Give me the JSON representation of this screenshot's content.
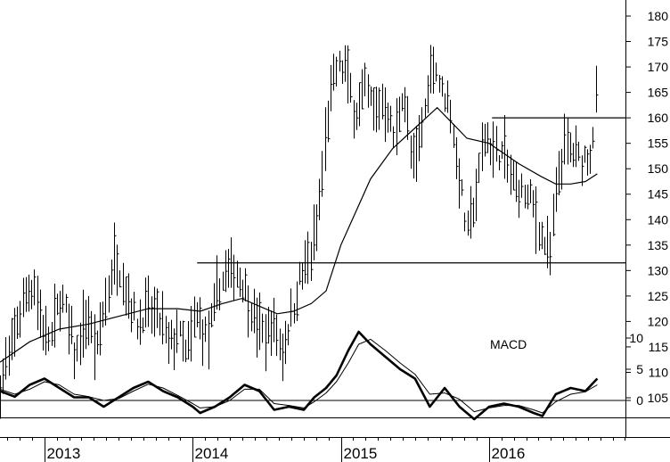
{
  "chart_data": [
    {
      "type": "bar",
      "subtype": "ohlc-price-with-moving-average",
      "title": "",
      "xlabel": "",
      "ylabel": "",
      "ylim": [
        100,
        182
      ],
      "y_ticks": [
        105,
        110,
        115,
        120,
        125,
        130,
        135,
        140,
        145,
        150,
        155,
        160,
        165,
        170,
        175,
        180
      ],
      "x_tick_labels": [
        "2013",
        "2014",
        "2015",
        "2016"
      ],
      "x_range_years": [
        2012.7,
        2016.92
      ],
      "grid": false,
      "price_path": [
        [
          2012.7,
          107
        ],
        [
          2012.8,
          118
        ],
        [
          2012.87,
          126
        ],
        [
          2012.93,
          127
        ],
        [
          2012.98,
          119
        ],
        [
          2013.05,
          117
        ],
        [
          2013.1,
          125
        ],
        [
          2013.15,
          121
        ],
        [
          2013.21,
          113
        ],
        [
          2013.29,
          121
        ],
        [
          2013.35,
          113
        ],
        [
          2013.4,
          123
        ],
        [
          2013.48,
          133
        ],
        [
          2013.54,
          127
        ],
        [
          2013.62,
          120
        ],
        [
          2013.7,
          122
        ],
        [
          2013.77,
          121
        ],
        [
          2013.84,
          115
        ],
        [
          2013.9,
          118
        ],
        [
          2013.96,
          113
        ],
        [
          2014.02,
          121
        ],
        [
          2014.1,
          116
        ],
        [
          2014.17,
          126
        ],
        [
          2014.23,
          130
        ],
        [
          2014.29,
          130
        ],
        [
          2014.35,
          127
        ],
        [
          2014.42,
          120
        ],
        [
          2014.48,
          117
        ],
        [
          2014.54,
          120
        ],
        [
          2014.6,
          114
        ],
        [
          2014.66,
          121
        ],
        [
          2014.72,
          128
        ],
        [
          2014.8,
          133
        ],
        [
          2014.85,
          142
        ],
        [
          2014.91,
          160
        ],
        [
          2014.97,
          170
        ],
        [
          2015.03,
          170
        ],
        [
          2015.09,
          161
        ],
        [
          2015.16,
          166
        ],
        [
          2015.22,
          162
        ],
        [
          2015.3,
          163
        ],
        [
          2015.36,
          155
        ],
        [
          2015.42,
          166
        ],
        [
          2015.48,
          150
        ],
        [
          2015.54,
          157
        ],
        [
          2015.62,
          172
        ],
        [
          2015.68,
          165
        ],
        [
          2015.73,
          163
        ],
        [
          2015.79,
          150
        ],
        [
          2015.85,
          137
        ],
        [
          2015.91,
          145
        ],
        [
          2015.97,
          157
        ],
        [
          2016.03,
          153
        ],
        [
          2016.1,
          153
        ],
        [
          2016.16,
          147
        ],
        [
          2016.23,
          145
        ],
        [
          2016.29,
          143
        ],
        [
          2016.35,
          137
        ],
        [
          2016.41,
          133
        ],
        [
          2016.47,
          149
        ],
        [
          2016.52,
          155
        ],
        [
          2016.58,
          152
        ],
        [
          2016.63,
          152
        ],
        [
          2016.69,
          153
        ],
        [
          2016.73,
          168
        ]
      ],
      "moving_average": [
        [
          2012.7,
          112
        ],
        [
          2012.9,
          116
        ],
        [
          2013.1,
          118.5
        ],
        [
          2013.3,
          119.5
        ],
        [
          2013.5,
          121
        ],
        [
          2013.7,
          122.5
        ],
        [
          2013.9,
          122.5
        ],
        [
          2014.05,
          122
        ],
        [
          2014.2,
          123.5
        ],
        [
          2014.33,
          124.5
        ],
        [
          2014.45,
          123
        ],
        [
          2014.57,
          121.5
        ],
        [
          2014.68,
          122
        ],
        [
          2014.8,
          123.5
        ],
        [
          2014.9,
          126
        ],
        [
          2015.0,
          135
        ],
        [
          2015.2,
          148
        ],
        [
          2015.35,
          154
        ],
        [
          2015.5,
          158
        ],
        [
          2015.65,
          162
        ],
        [
          2015.75,
          159
        ],
        [
          2015.85,
          156
        ],
        [
          2016.0,
          155
        ],
        [
          2016.2,
          151
        ],
        [
          2016.35,
          148.5
        ],
        [
          2016.45,
          147
        ],
        [
          2016.55,
          147
        ],
        [
          2016.65,
          147.5
        ],
        [
          2016.73,
          149
        ]
      ],
      "horizontal_lines": [
        {
          "from": 2014.03,
          "to": 2016.92,
          "y": 131.5
        },
        {
          "from": 2016.02,
          "to": 2016.92,
          "y": 160
        }
      ],
      "colors": {
        "bars": "#000000",
        "average": "#000000",
        "lines": "#000000"
      }
    },
    {
      "type": "line",
      "subtype": "macd",
      "label": "MACD",
      "ylim": [
        -5,
        13
      ],
      "y_ticks": [
        0,
        5,
        10
      ],
      "zero_line": 0,
      "series": [
        {
          "style": "thick",
          "values": [
            [
              2012.7,
              1.5
            ],
            [
              2012.8,
              0.6
            ],
            [
              2012.9,
              2.5
            ],
            [
              2013.0,
              3.5
            ],
            [
              2013.1,
              2.0
            ],
            [
              2013.2,
              0.5
            ],
            [
              2013.3,
              0.5
            ],
            [
              2013.4,
              -1.0
            ],
            [
              2013.5,
              0.5
            ],
            [
              2013.6,
              2.0
            ],
            [
              2013.7,
              3.0
            ],
            [
              2013.8,
              1.5
            ],
            [
              2013.9,
              0.5
            ],
            [
              2014.0,
              -1.0
            ],
            [
              2014.05,
              -2.0
            ],
            [
              2014.15,
              -1.0
            ],
            [
              2014.25,
              0.5
            ],
            [
              2014.35,
              2.5
            ],
            [
              2014.45,
              1.5
            ],
            [
              2014.55,
              -1.5
            ],
            [
              2014.65,
              -1.0
            ],
            [
              2014.75,
              -1.5
            ],
            [
              2014.82,
              0.5
            ],
            [
              2014.9,
              2.0
            ],
            [
              2014.97,
              4.0
            ],
            [
              2015.05,
              8.0
            ],
            [
              2015.12,
              11.0
            ],
            [
              2015.2,
              9.0
            ],
            [
              2015.3,
              7.0
            ],
            [
              2015.4,
              5.0
            ],
            [
              2015.5,
              3.5
            ],
            [
              2015.6,
              -1.0
            ],
            [
              2015.7,
              2.0
            ],
            [
              2015.8,
              -1.0
            ],
            [
              2015.9,
              -3.0
            ],
            [
              2016.0,
              -1.0
            ],
            [
              2016.1,
              -0.5
            ],
            [
              2016.2,
              -1.0
            ],
            [
              2016.3,
              -2.0
            ],
            [
              2016.36,
              -2.5
            ],
            [
              2016.45,
              1.0
            ],
            [
              2016.55,
              2.0
            ],
            [
              2016.65,
              1.5
            ],
            [
              2016.73,
              3.5
            ]
          ]
        },
        {
          "style": "thin",
          "values": [
            [
              2012.7,
              1.8
            ],
            [
              2012.8,
              1.0
            ],
            [
              2012.9,
              1.8
            ],
            [
              2013.0,
              3.0
            ],
            [
              2013.1,
              2.5
            ],
            [
              2013.2,
              1.0
            ],
            [
              2013.3,
              0.6
            ],
            [
              2013.4,
              0.0
            ],
            [
              2013.5,
              0.3
            ],
            [
              2013.6,
              1.5
            ],
            [
              2013.7,
              2.6
            ],
            [
              2013.8,
              2.0
            ],
            [
              2013.9,
              0.8
            ],
            [
              2014.0,
              -0.5
            ],
            [
              2014.05,
              -1.2
            ],
            [
              2014.15,
              -1.0
            ],
            [
              2014.25,
              0.0
            ],
            [
              2014.35,
              1.8
            ],
            [
              2014.45,
              1.8
            ],
            [
              2014.55,
              -0.5
            ],
            [
              2014.65,
              -0.8
            ],
            [
              2014.75,
              -1.2
            ],
            [
              2014.82,
              -0.2
            ],
            [
              2014.9,
              1.2
            ],
            [
              2014.97,
              3.0
            ],
            [
              2015.05,
              6.0
            ],
            [
              2015.12,
              9.0
            ],
            [
              2015.2,
              9.8
            ],
            [
              2015.3,
              8.0
            ],
            [
              2015.4,
              6.0
            ],
            [
              2015.5,
              4.2
            ],
            [
              2015.6,
              1.0
            ],
            [
              2015.7,
              1.2
            ],
            [
              2015.8,
              0.2
            ],
            [
              2015.9,
              -1.8
            ],
            [
              2016.0,
              -1.2
            ],
            [
              2016.1,
              -0.8
            ],
            [
              2016.2,
              -0.8
            ],
            [
              2016.3,
              -1.5
            ],
            [
              2016.36,
              -2.0
            ],
            [
              2016.45,
              -0.2
            ],
            [
              2016.55,
              1.0
            ],
            [
              2016.65,
              1.4
            ],
            [
              2016.73,
              2.5
            ]
          ]
        }
      ]
    }
  ]
}
